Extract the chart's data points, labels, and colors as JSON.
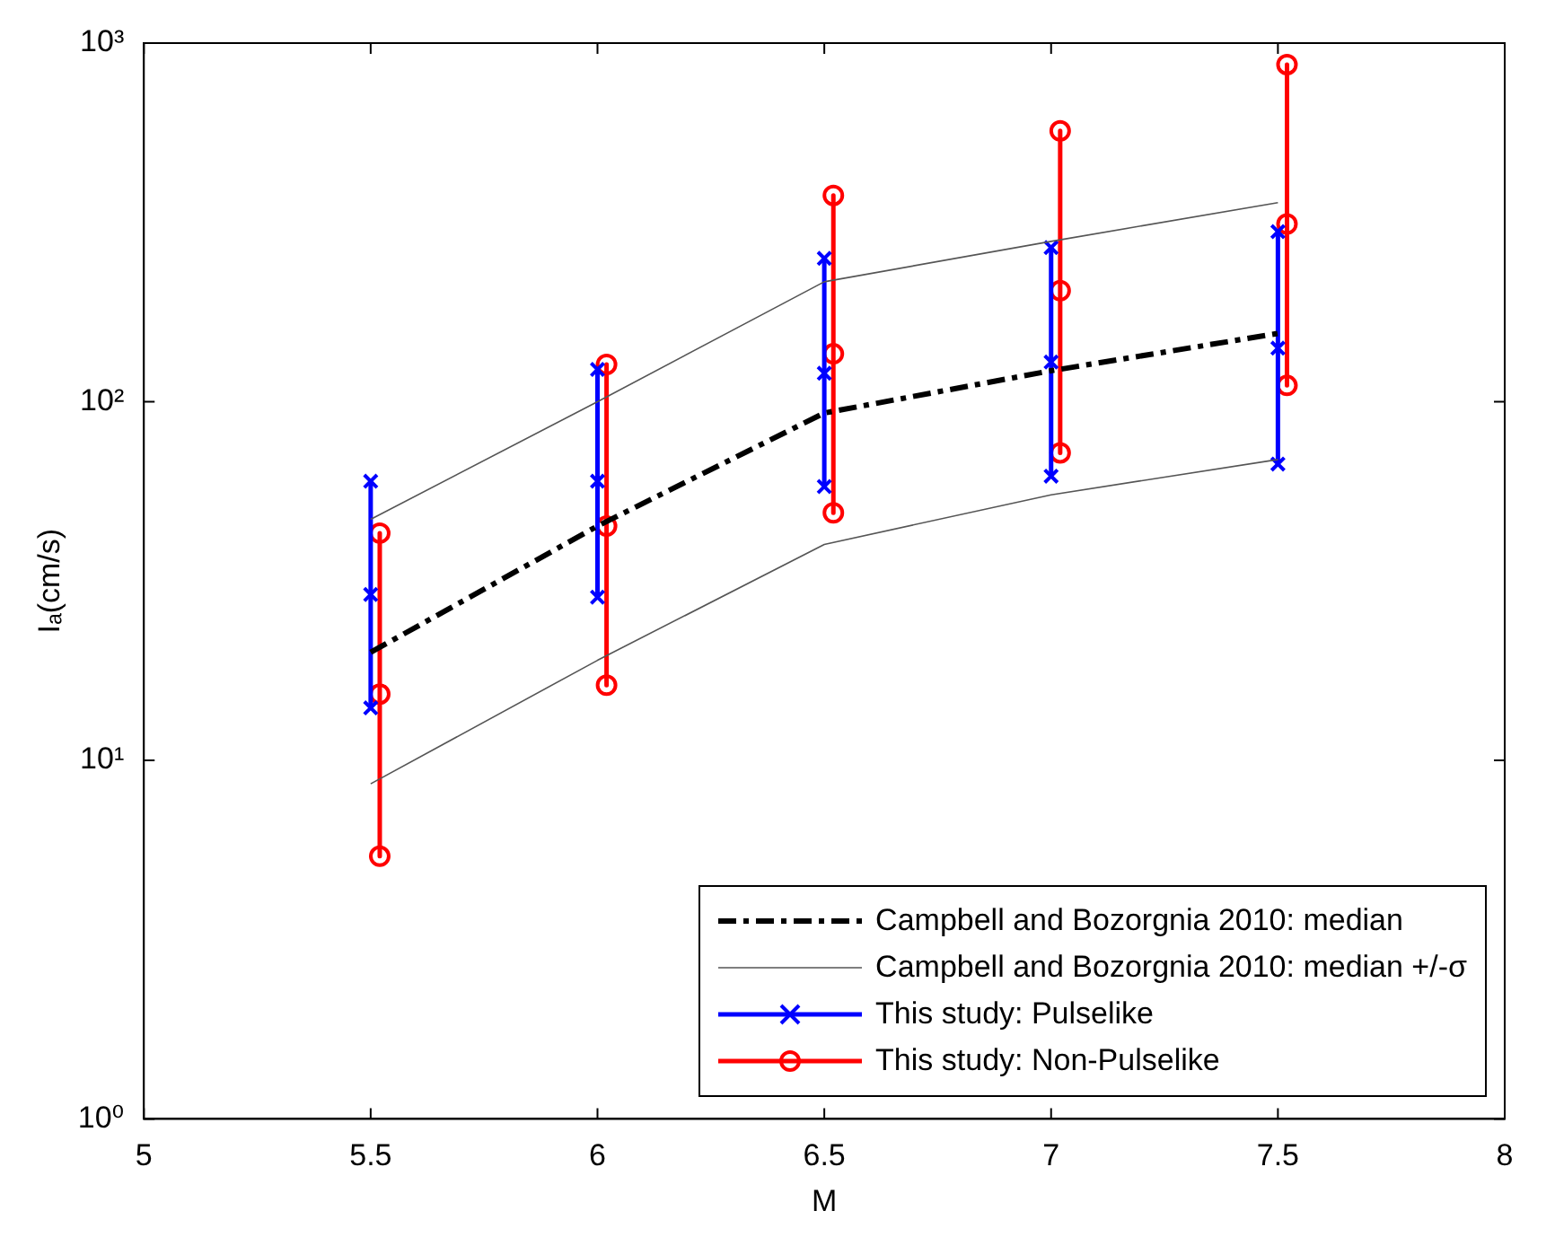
{
  "chart_data": {
    "type": "line",
    "xlabel": "M",
    "ylabel": "Iₐ(cm/s)",
    "log": "y",
    "grid": false,
    "legend": "bottom right",
    "xlim": [
      5,
      8
    ],
    "xticks": [
      5,
      5.5,
      6,
      6.5,
      7,
      7.5,
      8
    ],
    "ylim": [
      1,
      1000
    ],
    "yticks": [
      {
        "value": 1,
        "label": "10⁰"
      },
      {
        "value": 10,
        "label": "10¹"
      },
      {
        "value": 100,
        "label": "10²"
      },
      {
        "value": 1000,
        "label": "10³"
      }
    ],
    "series": [
      {
        "name": "Campbell and Bozorgnia 2010: median",
        "color": "#000000",
        "line_style": "dashdot",
        "marker": "none",
        "x": [
          5.5,
          6,
          6.5,
          7,
          7.5
        ],
        "values": [
          20,
          45,
          93,
          122,
          155
        ]
      },
      {
        "name": "Campbell and Bozorgnia 2010: median +/-σ",
        "color": "#555555",
        "line_style": "solid",
        "marker": "none",
        "x": [
          5.5,
          6,
          6.5,
          7,
          7.5
        ],
        "values": [
          47,
          100,
          216,
          280,
          359
        ]
      },
      {
        "color": "#555555",
        "line_style": "solid",
        "marker": "none",
        "x": [
          5.5,
          6,
          6.5,
          7,
          7.5
        ],
        "values": [
          8.6,
          19,
          40,
          55,
          69
        ]
      },
      {
        "name": "This study: Pulselike",
        "color": "#0000ff",
        "line_style": "solid",
        "marker": "cross",
        "x": [
          5.5,
          5.5,
          5.5,
          null,
          6,
          6,
          6,
          null,
          6.5,
          6.5,
          6.5,
          null,
          7,
          7,
          7,
          null,
          7.5,
          7.5,
          7.5
        ],
        "values": [
          60,
          29,
          14,
          null,
          123,
          60,
          28.5,
          null,
          251,
          120,
          58,
          null,
          269,
          129,
          62,
          null,
          298,
          141,
          67
        ]
      },
      {
        "name": "This study: Non-Pulselike",
        "color": "#ff0000",
        "line_style": "solid",
        "marker": "circle",
        "x": [
          5.52,
          5.52,
          5.52,
          null,
          6.02,
          6.02,
          6.02,
          null,
          6.52,
          6.52,
          6.52,
          null,
          7.02,
          7.02,
          7.02,
          null,
          7.52,
          7.52,
          7.52
        ],
        "values": [
          43,
          15.3,
          5.4,
          null,
          127,
          45,
          16.2,
          null,
          376,
          136,
          49,
          null,
          569,
          204,
          72,
          null,
          871,
          313,
          111
        ]
      }
    ]
  }
}
